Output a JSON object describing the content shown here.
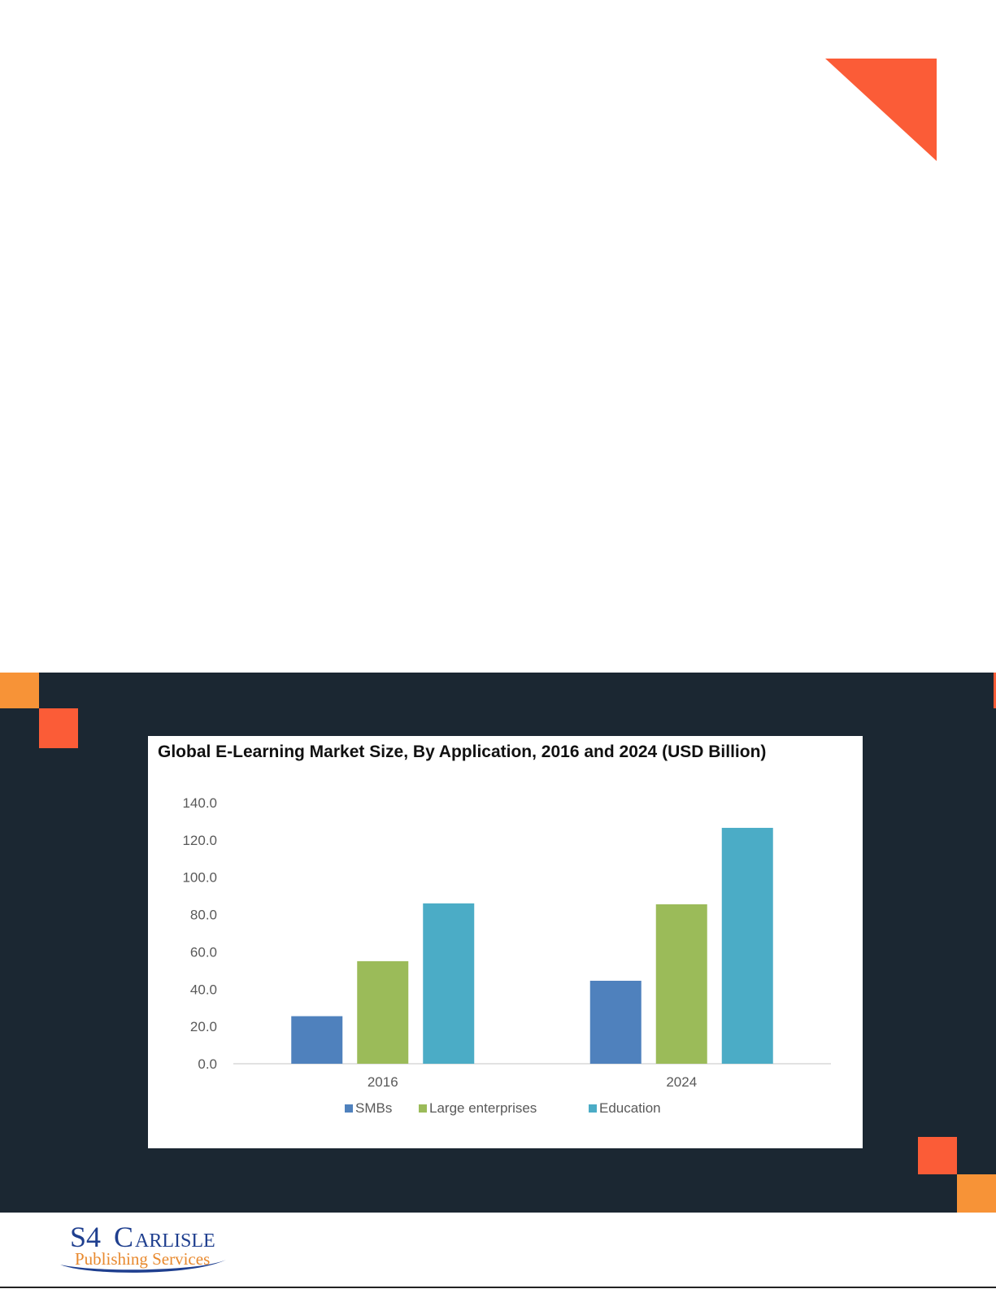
{
  "chart_data": {
    "type": "bar",
    "title": "Global E-Learning Market Size, By Application, 2016 and 2024 (USD Billion)",
    "categories": [
      "2016",
      "2024"
    ],
    "series": [
      {
        "name": "SMBs",
        "values": [
          25.5,
          44.5
        ],
        "color": "#4f81bd"
      },
      {
        "name": "Large enterprises",
        "values": [
          55.0,
          85.5
        ],
        "color": "#9bbb59"
      },
      {
        "name": "Education",
        "values": [
          86.0,
          126.5
        ],
        "color": "#4bacc6"
      }
    ],
    "ylim": [
      0,
      140
    ],
    "yticks": [
      "0.0",
      "20.0",
      "40.0",
      "60.0",
      "80.0",
      "100.0",
      "120.0",
      "140.0"
    ],
    "grid": false,
    "legend": "bottom"
  },
  "logo": {
    "line1_s4": "S4",
    "line1_c": "C",
    "line1_rest": "ARLISLE",
    "line2": "Publishing Services"
  },
  "colors": {
    "accent_orange": "#fb5c37",
    "accent_amber": "#f79337",
    "band": "#1b2732"
  }
}
